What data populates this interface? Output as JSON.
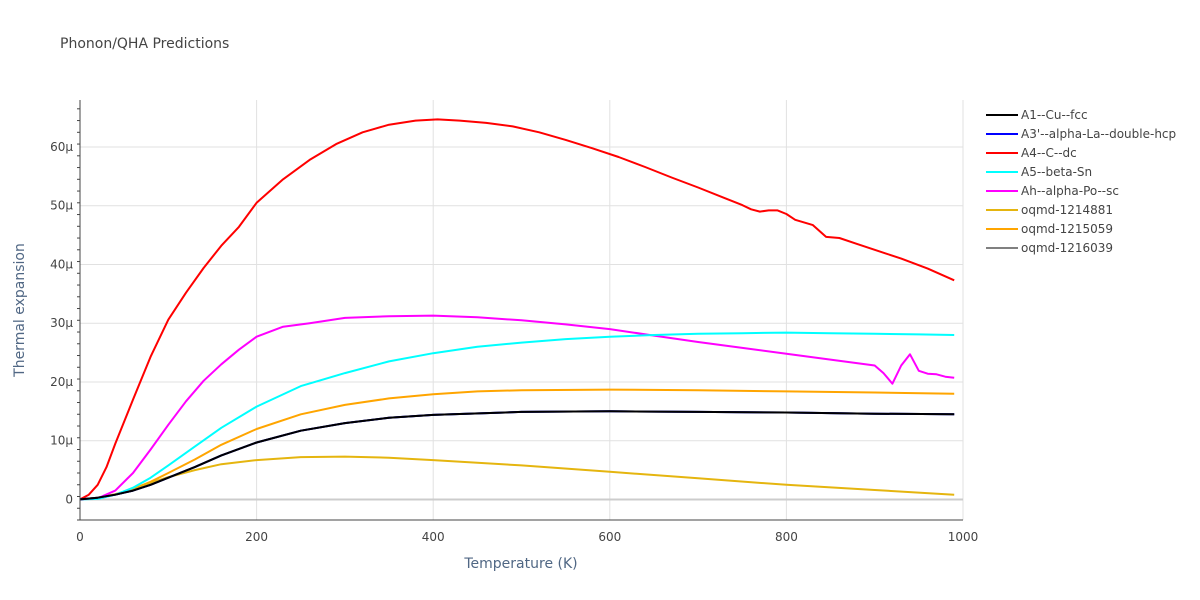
{
  "chart_data": {
    "type": "line",
    "title": "Phonon/QHA Predictions",
    "xlabel": "Temperature (K)",
    "ylabel": "Thermal expansion",
    "xlim": [
      0,
      1000
    ],
    "ylim": [
      -3.5e-06,
      6.8e-05
    ],
    "x_ticks": [
      0,
      200,
      400,
      600,
      800,
      1000
    ],
    "x_tick_labels": [
      "0",
      "200",
      "400",
      "600",
      "800",
      "1000"
    ],
    "y_ticks": [
      0,
      1e-05,
      2e-05,
      3e-05,
      4e-05,
      5e-05,
      6e-05
    ],
    "y_tick_labels": [
      "0",
      "10μ",
      "20μ",
      "30μ",
      "40μ",
      "50μ",
      "60μ"
    ],
    "grid": true,
    "legend_position": "right",
    "series": [
      {
        "name": "A1--Cu--fcc",
        "color": "#000000",
        "x": [
          0,
          20,
          40,
          60,
          80,
          100,
          130,
          160,
          200,
          250,
          300,
          350,
          400,
          500,
          600,
          700,
          800,
          900,
          990
        ],
        "y": [
          0,
          3e-07,
          8e-07,
          1.5e-06,
          2.5e-06,
          3.7e-06,
          5.5e-06,
          7.5e-06,
          9.7e-06,
          1.17e-05,
          1.3e-05,
          1.39e-05,
          1.44e-05,
          1.49e-05,
          1.5e-05,
          1.49e-05,
          1.48e-05,
          1.46e-05,
          1.45e-05
        ]
      },
      {
        "name": "A3'--alpha-La--double-hcp",
        "color": "#0000ff",
        "x": [
          0,
          20,
          40,
          60,
          80,
          100,
          130,
          160,
          200,
          250,
          300,
          350,
          400,
          500,
          600,
          700,
          800,
          900,
          990
        ],
        "y": [
          0,
          3e-07,
          8e-07,
          1.5e-06,
          2.5e-06,
          3.7e-06,
          5.5e-06,
          7.5e-06,
          9.7e-06,
          1.17e-05,
          1.3e-05,
          1.39e-05,
          1.44e-05,
          1.49e-05,
          1.5e-05,
          1.49e-05,
          1.48e-05,
          1.46e-05,
          1.45e-05
        ]
      },
      {
        "name": "A4--C--dc",
        "color": "#ff0000",
        "x": [
          0,
          10,
          20,
          30,
          40,
          60,
          80,
          100,
          120,
          140,
          160,
          180,
          200,
          230,
          260,
          290,
          320,
          350,
          380,
          405,
          430,
          460,
          490,
          520,
          550,
          580,
          610,
          640,
          670,
          700,
          730,
          750,
          760,
          770,
          780,
          790,
          800,
          810,
          830,
          845,
          860,
          880,
          900,
          930,
          960,
          990
        ],
        "y": [
          0,
          8e-07,
          2.5e-06,
          5.5e-06,
          9.5e-06,
          1.7e-05,
          2.43e-05,
          3.06e-05,
          3.52e-05,
          3.94e-05,
          4.32e-05,
          4.64e-05,
          5.05e-05,
          5.45e-05,
          5.78e-05,
          6.05e-05,
          6.25e-05,
          6.38e-05,
          6.45e-05,
          6.47e-05,
          6.45e-05,
          6.41e-05,
          6.35e-05,
          6.25e-05,
          6.12e-05,
          5.98e-05,
          5.83e-05,
          5.66e-05,
          5.48e-05,
          5.31e-05,
          5.13e-05,
          5.01e-05,
          4.94e-05,
          4.9e-05,
          4.92e-05,
          4.92e-05,
          4.86e-05,
          4.76e-05,
          4.67e-05,
          4.47e-05,
          4.45e-05,
          4.35e-05,
          4.25e-05,
          4.1e-05,
          3.93e-05,
          3.73e-05
        ]
      },
      {
        "name": "A5--beta-Sn",
        "color": "#00ffff",
        "x": [
          0,
          20,
          40,
          60,
          80,
          100,
          130,
          160,
          200,
          250,
          300,
          350,
          400,
          450,
          500,
          550,
          600,
          650,
          700,
          750,
          800,
          850,
          900,
          950,
          990
        ],
        "y": [
          0,
          1e-07,
          8e-07,
          2e-06,
          3.7e-06,
          5.8e-06,
          9e-06,
          1.22e-05,
          1.58e-05,
          1.93e-05,
          2.15e-05,
          2.35e-05,
          2.49e-05,
          2.6e-05,
          2.67e-05,
          2.73e-05,
          2.77e-05,
          2.8e-05,
          2.82e-05,
          2.83e-05,
          2.84e-05,
          2.83e-05,
          2.82e-05,
          2.81e-05,
          2.8e-05
        ]
      },
      {
        "name": "Ah--alpha-Po--sc",
        "color": "#ff00ff",
        "x": [
          0,
          20,
          40,
          60,
          80,
          100,
          120,
          140,
          160,
          180,
          200,
          230,
          260,
          300,
          350,
          400,
          450,
          500,
          550,
          600,
          650,
          700,
          750,
          800,
          850,
          900,
          910,
          920,
          930,
          940,
          950,
          960,
          970,
          980,
          990
        ],
        "y": [
          0,
          2e-07,
          1.5e-06,
          4.5e-06,
          8.5e-06,
          1.27e-05,
          1.67e-05,
          2.02e-05,
          2.3e-05,
          2.55e-05,
          2.77e-05,
          2.94e-05,
          3e-05,
          3.09e-05,
          3.12e-05,
          3.13e-05,
          3.1e-05,
          3.05e-05,
          2.98e-05,
          2.9e-05,
          2.79e-05,
          2.68e-05,
          2.58e-05,
          2.48e-05,
          2.38e-05,
          2.28e-05,
          2.15e-05,
          1.97e-05,
          2.28e-05,
          2.47e-05,
          2.19e-05,
          2.14e-05,
          2.13e-05,
          2.09e-05,
          2.07e-05
        ]
      },
      {
        "name": "oqmd-1214881",
        "color": "#e5b50f",
        "x": [
          0,
          20,
          40,
          60,
          80,
          100,
          130,
          160,
          200,
          250,
          300,
          350,
          400,
          500,
          600,
          700,
          800,
          900,
          990
        ],
        "y": [
          0,
          3e-07,
          9e-07,
          1.7e-06,
          2.8e-06,
          3.8e-06,
          5e-06,
          6e-06,
          6.7e-06,
          7.2e-06,
          7.3e-06,
          7.1e-06,
          6.7e-06,
          5.8e-06,
          4.7e-06,
          3.6e-06,
          2.5e-06,
          1.6e-06,
          8e-07
        ]
      },
      {
        "name": "oqmd-1215059",
        "color": "#ffa500",
        "x": [
          0,
          20,
          40,
          60,
          80,
          100,
          130,
          160,
          200,
          250,
          300,
          350,
          400,
          450,
          500,
          600,
          700,
          800,
          900,
          990
        ],
        "y": [
          0,
          3e-07,
          9e-07,
          1.8e-06,
          3e-06,
          4.5e-06,
          6.8e-06,
          9.3e-06,
          1.2e-05,
          1.45e-05,
          1.61e-05,
          1.72e-05,
          1.79e-05,
          1.84e-05,
          1.86e-05,
          1.87e-05,
          1.86e-05,
          1.84e-05,
          1.82e-05,
          1.8e-05
        ]
      },
      {
        "name": "oqmd-1216039",
        "color": "#808080",
        "x": [
          0,
          20,
          40,
          60,
          80,
          100,
          130,
          160,
          200,
          250,
          300,
          350,
          400,
          500,
          600,
          700,
          800,
          900,
          990
        ],
        "y": [
          0,
          3e-07,
          8e-07,
          1.5e-06,
          2.5e-06,
          3.7e-06,
          5.5e-06,
          7.5e-06,
          9.7e-06,
          1.17e-05,
          1.3e-05,
          1.39e-05,
          1.44e-05,
          1.49e-05,
          1.5e-05,
          1.49e-05,
          1.48e-05,
          1.46e-05,
          1.45e-05
        ]
      }
    ]
  }
}
